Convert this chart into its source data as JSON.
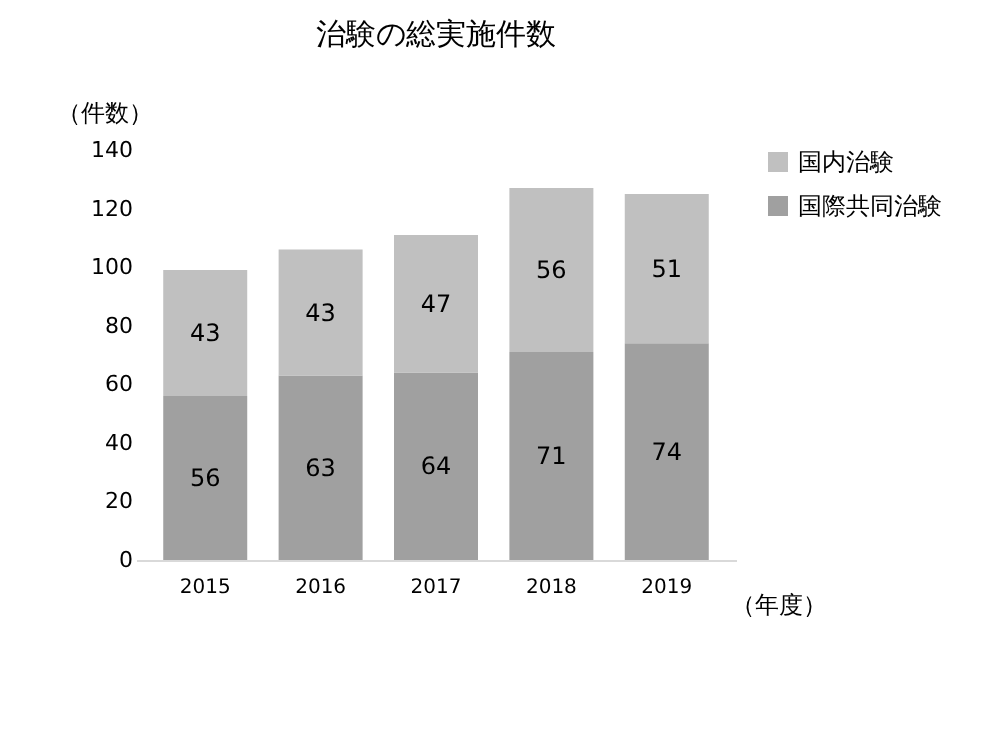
{
  "chart_data": {
    "type": "bar",
    "title": "治験の総実施件数",
    "ylabel": "（件数）",
    "xlabel": "（年度）",
    "categories": [
      "2015",
      "2016",
      "2017",
      "2018",
      "2019"
    ],
    "series": [
      {
        "name": "国際共同治験",
        "color": "#a0a0a0",
        "values": [
          56,
          63,
          64,
          71,
          74
        ]
      },
      {
        "name": "国内治験",
        "color": "#c0c0c0",
        "values": [
          43,
          43,
          47,
          56,
          51
        ]
      }
    ],
    "stacked": true,
    "data_labels": true,
    "ylim": [
      0,
      140
    ],
    "yticks": [
      0,
      20,
      40,
      60,
      80,
      100,
      120,
      140
    ],
    "legend": "right",
    "grid": false
  }
}
